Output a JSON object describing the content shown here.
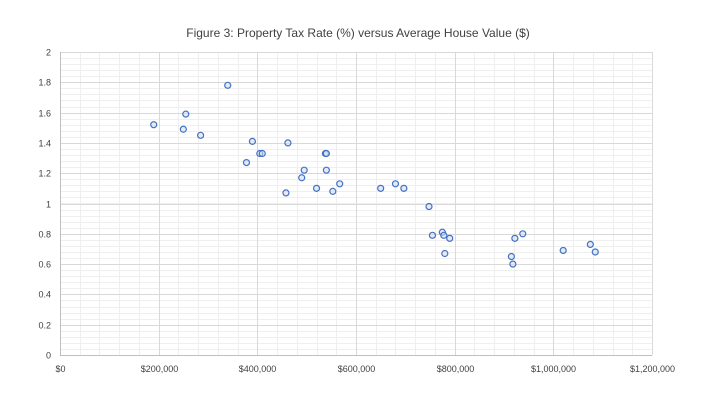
{
  "chart_data": {
    "type": "scatter",
    "title": "Figure 3: Property Tax Rate (%) versus Average House Value ($)",
    "xlabel": "",
    "ylabel": "",
    "xlim": [
      0,
      1200000
    ],
    "ylim": [
      0,
      2
    ],
    "x_major_step": 200000,
    "x_minor_step": 40000,
    "y_major_step": 0.2,
    "y_minor_step": 0.04,
    "x_tick_labels": [
      "$0",
      "$200,000",
      "$400,000",
      "$600,000",
      "$800,000",
      "$1,000,000",
      "$1,200,000"
    ],
    "y_tick_labels": [
      "0",
      "0.2",
      "0.4",
      "0.6",
      "0.8",
      "1",
      "1.2",
      "1.4",
      "1.6",
      "1.8",
      "2"
    ],
    "grid": true,
    "legend": "none",
    "marker_color": "#4472c4",
    "points": [
      {
        "x": 190000,
        "y": 1.52
      },
      {
        "x": 250000,
        "y": 1.49
      },
      {
        "x": 255000,
        "y": 1.59
      },
      {
        "x": 285000,
        "y": 1.45
      },
      {
        "x": 340000,
        "y": 1.78
      },
      {
        "x": 378000,
        "y": 1.27
      },
      {
        "x": 390000,
        "y": 1.41
      },
      {
        "x": 405000,
        "y": 1.33
      },
      {
        "x": 410000,
        "y": 1.33
      },
      {
        "x": 458000,
        "y": 1.07
      },
      {
        "x": 462000,
        "y": 1.4
      },
      {
        "x": 490000,
        "y": 1.17
      },
      {
        "x": 495000,
        "y": 1.22
      },
      {
        "x": 520000,
        "y": 1.1
      },
      {
        "x": 538000,
        "y": 1.33
      },
      {
        "x": 540000,
        "y": 1.33
      },
      {
        "x": 540000,
        "y": 1.22
      },
      {
        "x": 553000,
        "y": 1.08
      },
      {
        "x": 567000,
        "y": 1.13
      },
      {
        "x": 650000,
        "y": 1.1
      },
      {
        "x": 680000,
        "y": 1.13
      },
      {
        "x": 697000,
        "y": 1.1
      },
      {
        "x": 748000,
        "y": 0.98
      },
      {
        "x": 755000,
        "y": 0.79
      },
      {
        "x": 775000,
        "y": 0.81
      },
      {
        "x": 778000,
        "y": 0.79
      },
      {
        "x": 780000,
        "y": 0.67
      },
      {
        "x": 790000,
        "y": 0.77
      },
      {
        "x": 915000,
        "y": 0.65
      },
      {
        "x": 918000,
        "y": 0.6
      },
      {
        "x": 922000,
        "y": 0.77
      },
      {
        "x": 938000,
        "y": 0.8
      },
      {
        "x": 1020000,
        "y": 0.69
      },
      {
        "x": 1075000,
        "y": 0.73
      },
      {
        "x": 1085000,
        "y": 0.68
      }
    ]
  }
}
